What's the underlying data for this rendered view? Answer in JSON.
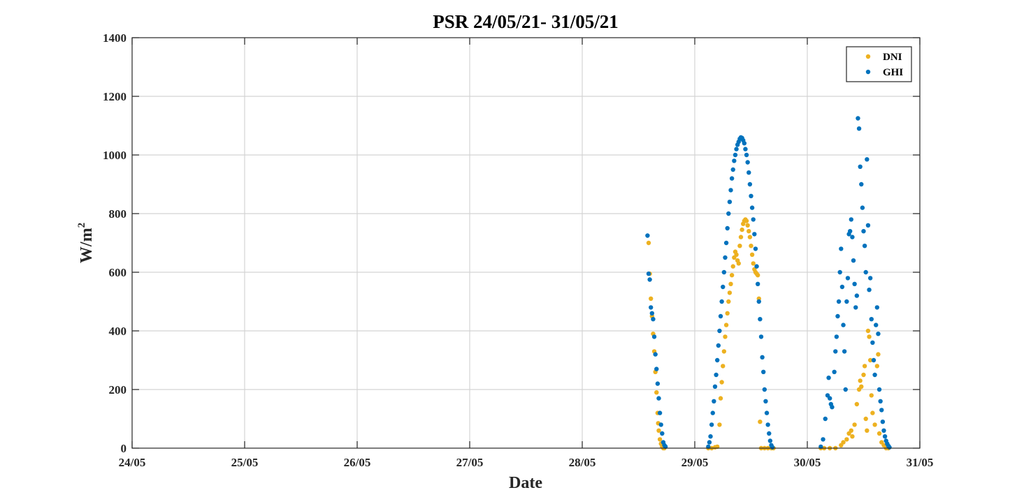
{
  "chart_data": {
    "type": "scatter",
    "title": "PSR 24/05/21- 31/05/21",
    "xlabel": "Date",
    "ylabel_base": "W/m",
    "ylabel_sup": "2",
    "xlim": [
      0,
      7
    ],
    "ylim": [
      0,
      1400
    ],
    "x_unit": "days since 24/05",
    "x_ticks": [
      0,
      1,
      2,
      3,
      4,
      5,
      6,
      7
    ],
    "x_tick_labels": [
      "24/05",
      "25/05",
      "26/05",
      "27/05",
      "28/05",
      "29/05",
      "30/05",
      "31/05"
    ],
    "y_ticks": [
      0,
      200,
      400,
      600,
      800,
      1000,
      1200,
      1400
    ],
    "y_tick_labels": [
      "0",
      "200",
      "400",
      "600",
      "800",
      "1000",
      "1200",
      "1400"
    ],
    "grid": true,
    "legend_position": "top-right",
    "series": [
      {
        "name": "DNI",
        "color": "#EDB120",
        "points": [
          [
            4.59,
            700
          ],
          [
            4.6,
            595
          ],
          [
            4.61,
            510
          ],
          [
            4.62,
            450
          ],
          [
            4.63,
            390
          ],
          [
            4.64,
            330
          ],
          [
            4.65,
            260
          ],
          [
            4.66,
            190
          ],
          [
            4.67,
            120
          ],
          [
            4.675,
            85
          ],
          [
            4.68,
            60
          ],
          [
            4.69,
            30
          ],
          [
            4.7,
            15
          ],
          [
            4.71,
            5
          ],
          [
            4.72,
            0
          ],
          [
            4.73,
            0
          ],
          [
            5.12,
            0
          ],
          [
            5.15,
            0
          ],
          [
            5.18,
            3
          ],
          [
            5.2,
            5
          ],
          [
            5.22,
            80
          ],
          [
            5.23,
            170
          ],
          [
            5.24,
            225
          ],
          [
            5.25,
            280
          ],
          [
            5.26,
            330
          ],
          [
            5.27,
            380
          ],
          [
            5.28,
            420
          ],
          [
            5.29,
            460
          ],
          [
            5.3,
            500
          ],
          [
            5.31,
            530
          ],
          [
            5.32,
            560
          ],
          [
            5.33,
            590
          ],
          [
            5.34,
            620
          ],
          [
            5.35,
            650
          ],
          [
            5.36,
            670
          ],
          [
            5.37,
            660
          ],
          [
            5.38,
            640
          ],
          [
            5.39,
            630
          ],
          [
            5.4,
            690
          ],
          [
            5.41,
            720
          ],
          [
            5.42,
            745
          ],
          [
            5.43,
            765
          ],
          [
            5.44,
            775
          ],
          [
            5.45,
            780
          ],
          [
            5.46,
            775
          ],
          [
            5.47,
            760
          ],
          [
            5.48,
            740
          ],
          [
            5.49,
            720
          ],
          [
            5.5,
            690
          ],
          [
            5.51,
            660
          ],
          [
            5.52,
            630
          ],
          [
            5.53,
            610
          ],
          [
            5.54,
            600
          ],
          [
            5.55,
            595
          ],
          [
            5.56,
            590
          ],
          [
            5.57,
            510
          ],
          [
            5.58,
            90
          ],
          [
            5.59,
            0
          ],
          [
            5.62,
            0
          ],
          [
            5.65,
            0
          ],
          [
            5.68,
            0
          ],
          [
            5.7,
            0
          ],
          [
            6.12,
            0
          ],
          [
            6.15,
            0
          ],
          [
            6.2,
            0
          ],
          [
            6.25,
            0
          ],
          [
            6.3,
            10
          ],
          [
            6.32,
            20
          ],
          [
            6.35,
            30
          ],
          [
            6.37,
            50
          ],
          [
            6.39,
            60
          ],
          [
            6.4,
            40
          ],
          [
            6.42,
            80
          ],
          [
            6.44,
            150
          ],
          [
            6.46,
            200
          ],
          [
            6.47,
            230
          ],
          [
            6.48,
            210
          ],
          [
            6.5,
            250
          ],
          [
            6.51,
            280
          ],
          [
            6.52,
            100
          ],
          [
            6.53,
            60
          ],
          [
            6.54,
            400
          ],
          [
            6.55,
            380
          ],
          [
            6.56,
            300
          ],
          [
            6.57,
            180
          ],
          [
            6.58,
            120
          ],
          [
            6.6,
            80
          ],
          [
            6.62,
            280
          ],
          [
            6.63,
            320
          ],
          [
            6.64,
            50
          ],
          [
            6.66,
            20
          ],
          [
            6.68,
            10
          ],
          [
            6.7,
            0
          ],
          [
            6.72,
            0
          ]
        ]
      },
      {
        "name": "GHI",
        "color": "#0072BD",
        "points": [
          [
            4.58,
            725
          ],
          [
            4.59,
            595
          ],
          [
            4.6,
            575
          ],
          [
            4.61,
            480
          ],
          [
            4.62,
            460
          ],
          [
            4.63,
            440
          ],
          [
            4.64,
            380
          ],
          [
            4.65,
            320
          ],
          [
            4.66,
            270
          ],
          [
            4.67,
            220
          ],
          [
            4.68,
            170
          ],
          [
            4.69,
            120
          ],
          [
            4.7,
            80
          ],
          [
            4.71,
            50
          ],
          [
            4.72,
            20
          ],
          [
            4.73,
            10
          ],
          [
            4.74,
            5
          ],
          [
            5.12,
            5
          ],
          [
            5.13,
            20
          ],
          [
            5.14,
            40
          ],
          [
            5.15,
            80
          ],
          [
            5.16,
            120
          ],
          [
            5.17,
            160
          ],
          [
            5.18,
            210
          ],
          [
            5.19,
            250
          ],
          [
            5.2,
            300
          ],
          [
            5.21,
            350
          ],
          [
            5.22,
            400
          ],
          [
            5.23,
            450
          ],
          [
            5.24,
            500
          ],
          [
            5.25,
            550
          ],
          [
            5.26,
            600
          ],
          [
            5.27,
            650
          ],
          [
            5.28,
            700
          ],
          [
            5.29,
            750
          ],
          [
            5.3,
            800
          ],
          [
            5.31,
            840
          ],
          [
            5.32,
            880
          ],
          [
            5.33,
            920
          ],
          [
            5.34,
            950
          ],
          [
            5.35,
            980
          ],
          [
            5.36,
            1000
          ],
          [
            5.37,
            1020
          ],
          [
            5.38,
            1035
          ],
          [
            5.39,
            1045
          ],
          [
            5.4,
            1055
          ],
          [
            5.41,
            1060
          ],
          [
            5.42,
            1058
          ],
          [
            5.43,
            1050
          ],
          [
            5.44,
            1040
          ],
          [
            5.45,
            1020
          ],
          [
            5.46,
            1000
          ],
          [
            5.47,
            975
          ],
          [
            5.48,
            940
          ],
          [
            5.49,
            900
          ],
          [
            5.5,
            860
          ],
          [
            5.51,
            820
          ],
          [
            5.52,
            780
          ],
          [
            5.53,
            730
          ],
          [
            5.54,
            680
          ],
          [
            5.55,
            620
          ],
          [
            5.56,
            560
          ],
          [
            5.57,
            500
          ],
          [
            5.58,
            440
          ],
          [
            5.59,
            380
          ],
          [
            5.6,
            310
          ],
          [
            5.61,
            260
          ],
          [
            5.62,
            200
          ],
          [
            5.63,
            160
          ],
          [
            5.64,
            120
          ],
          [
            5.65,
            80
          ],
          [
            5.66,
            50
          ],
          [
            5.67,
            25
          ],
          [
            5.68,
            10
          ],
          [
            5.69,
            3
          ],
          [
            6.12,
            5
          ],
          [
            6.14,
            30
          ],
          [
            6.16,
            100
          ],
          [
            6.18,
            180
          ],
          [
            6.19,
            240
          ],
          [
            6.2,
            170
          ],
          [
            6.21,
            150
          ],
          [
            6.22,
            140
          ],
          [
            6.24,
            260
          ],
          [
            6.25,
            330
          ],
          [
            6.26,
            380
          ],
          [
            6.27,
            450
          ],
          [
            6.28,
            500
          ],
          [
            6.29,
            600
          ],
          [
            6.3,
            680
          ],
          [
            6.31,
            550
          ],
          [
            6.32,
            420
          ],
          [
            6.33,
            330
          ],
          [
            6.34,
            200
          ],
          [
            6.35,
            500
          ],
          [
            6.36,
            580
          ],
          [
            6.37,
            730
          ],
          [
            6.38,
            740
          ],
          [
            6.39,
            780
          ],
          [
            6.4,
            720
          ],
          [
            6.41,
            640
          ],
          [
            6.42,
            560
          ],
          [
            6.43,
            480
          ],
          [
            6.44,
            520
          ],
          [
            6.45,
            1125
          ],
          [
            6.46,
            1090
          ],
          [
            6.47,
            960
          ],
          [
            6.48,
            900
          ],
          [
            6.49,
            820
          ],
          [
            6.5,
            740
          ],
          [
            6.51,
            690
          ],
          [
            6.52,
            600
          ],
          [
            6.53,
            985
          ],
          [
            6.54,
            760
          ],
          [
            6.55,
            540
          ],
          [
            6.56,
            580
          ],
          [
            6.57,
            440
          ],
          [
            6.58,
            360
          ],
          [
            6.59,
            300
          ],
          [
            6.6,
            250
          ],
          [
            6.61,
            420
          ],
          [
            6.62,
            480
          ],
          [
            6.63,
            390
          ],
          [
            6.64,
            200
          ],
          [
            6.65,
            160
          ],
          [
            6.66,
            130
          ],
          [
            6.67,
            90
          ],
          [
            6.68,
            60
          ],
          [
            6.69,
            40
          ],
          [
            6.7,
            25
          ],
          [
            6.71,
            15
          ],
          [
            6.72,
            8
          ],
          [
            6.73,
            3
          ]
        ]
      }
    ]
  }
}
